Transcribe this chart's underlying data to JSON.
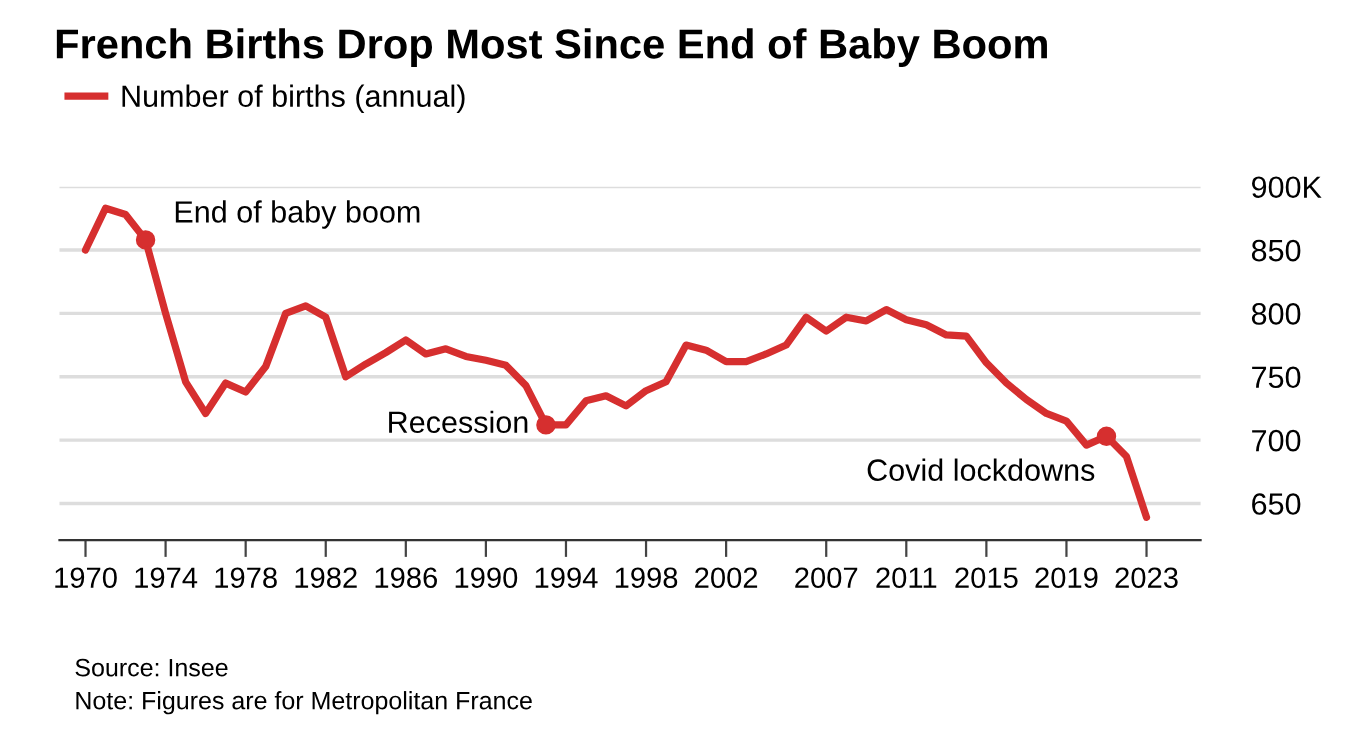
{
  "chart_data": {
    "type": "line",
    "title": "French Births Drop Most Since End of Baby Boom",
    "x": [
      1970,
      1971,
      1972,
      1973,
      1974,
      1975,
      1976,
      1977,
      1978,
      1979,
      1980,
      1981,
      1982,
      1983,
      1984,
      1985,
      1986,
      1987,
      1988,
      1989,
      1990,
      1991,
      1992,
      1993,
      1994,
      1995,
      1996,
      1997,
      1998,
      1999,
      2000,
      2001,
      2002,
      2003,
      2004,
      2005,
      2006,
      2007,
      2008,
      2009,
      2010,
      2011,
      2012,
      2013,
      2014,
      2015,
      2016,
      2017,
      2018,
      2019,
      2020,
      2021,
      2022,
      2023
    ],
    "series": [
      {
        "name": "Number of births (annual)",
        "color": "#d62f2f",
        "values": [
          850,
          883,
          878,
          858,
          800,
          746,
          721,
          745,
          738,
          758,
          800,
          806,
          797,
          750,
          760,
          769,
          779,
          768,
          772,
          766,
          763,
          759,
          743,
          712,
          712,
          731,
          735,
          727,
          739,
          746,
          775,
          771,
          762,
          762,
          768,
          775,
          797,
          786,
          797,
          794,
          803,
          795,
          791,
          783,
          782,
          761,
          745,
          732,
          721,
          715,
          696,
          703,
          687,
          639
        ]
      }
    ],
    "xlim": [
      1968.7,
      2025.7
    ],
    "xticks": [
      1970,
      1974,
      1978,
      1982,
      1986,
      1990,
      1994,
      1998,
      2002,
      2007,
      2011,
      2015,
      2019,
      2023
    ],
    "ylim": [
      621,
      900
    ],
    "yticks": [
      {
        "value": 650,
        "label": "650"
      },
      {
        "value": 700,
        "label": "700"
      },
      {
        "value": 750,
        "label": "750"
      },
      {
        "value": 800,
        "label": "800"
      },
      {
        "value": 850,
        "label": "850"
      },
      {
        "value": 900,
        "label": "900K"
      }
    ],
    "grid": "y",
    "legend": "top left",
    "marker": "none",
    "line_style": "solid",
    "annotations": [
      {
        "text": "End of baby boom",
        "x": 1973,
        "y": 858
      },
      {
        "text": "Recession",
        "x": 1993,
        "y": 712
      },
      {
        "text": "Covid lockdowns",
        "x": 2021,
        "y": 703
      },
      "Source: Insee",
      "Note: Figures are for Metropolitan France"
    ]
  }
}
